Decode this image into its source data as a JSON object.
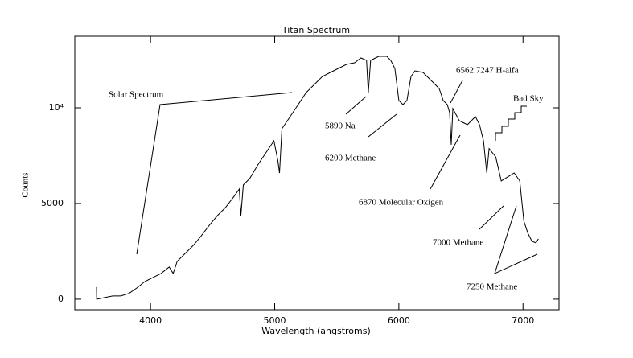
{
  "chart_data": {
    "type": "line",
    "title": "Titan Spectrum",
    "xlabel": "Wavelength (angstroms)",
    "ylabel": "Counts",
    "xlim": [
      3390,
      7290
    ],
    "ylim": [
      -550,
      13740
    ],
    "xticks": [
      4000,
      5000,
      6000,
      7000
    ],
    "yticks": [
      0,
      5000,
      {
        "value": 10000,
        "label": "10⁴"
      }
    ],
    "annotations": [
      "Solar Spectrum",
      "5890 Na",
      "6200 Methane",
      "6562.7247 H-alfa",
      "Bad Sky",
      "6870 Molecular Oxigen",
      "7000 Methane",
      "7250 Methane"
    ],
    "series": [
      {
        "name": "Titan Spectrum",
        "color": "#000000",
        "x": [
          3565,
          3566,
          3695,
          3760,
          3825,
          3890,
          3955,
          4020,
          4085,
          4150,
          4182,
          4215,
          4280,
          4345,
          4410,
          4474,
          4539,
          4604,
          4669,
          4715,
          4728,
          4747,
          4799,
          4864,
          4929,
          4994,
          5026,
          5039,
          5058,
          5124,
          5189,
          5254,
          5319,
          5384,
          5448,
          5513,
          5578,
          5643,
          5695,
          5740,
          5754,
          5773,
          5838,
          5903,
          5935,
          5968,
          6000,
          6033,
          6065,
          6098,
          6130,
          6195,
          6260,
          6325,
          6358,
          6390,
          6409,
          6422,
          6435,
          6487,
          6552,
          6617,
          6650,
          6682,
          6708,
          6727,
          6780,
          6825,
          6877,
          6929,
          6974,
          7007,
          7039,
          7072,
          7104,
          7124
        ],
        "values": [
          630,
          0,
          168,
          168,
          294,
          588,
          924,
          1135,
          1345,
          1681,
          1345,
          1975,
          2395,
          2815,
          3320,
          3866,
          4370,
          4790,
          5337,
          5757,
          4370,
          5967,
          6303,
          7017,
          7648,
          8278,
          7227,
          6597,
          8908,
          9539,
          10169,
          10799,
          11219,
          11640,
          11850,
          12060,
          12270,
          12354,
          12606,
          12480,
          10799,
          12480,
          12690,
          12690,
          12480,
          12060,
          10379,
          10169,
          10379,
          11640,
          11934,
          11850,
          11429,
          11009,
          10379,
          10169,
          9749,
          8068,
          9959,
          9328,
          9118,
          9539,
          9118,
          8278,
          6597,
          7867,
          7437,
          6177,
          6387,
          6597,
          6177,
          4076,
          3446,
          3025,
          2941,
          3151
        ]
      }
    ]
  }
}
